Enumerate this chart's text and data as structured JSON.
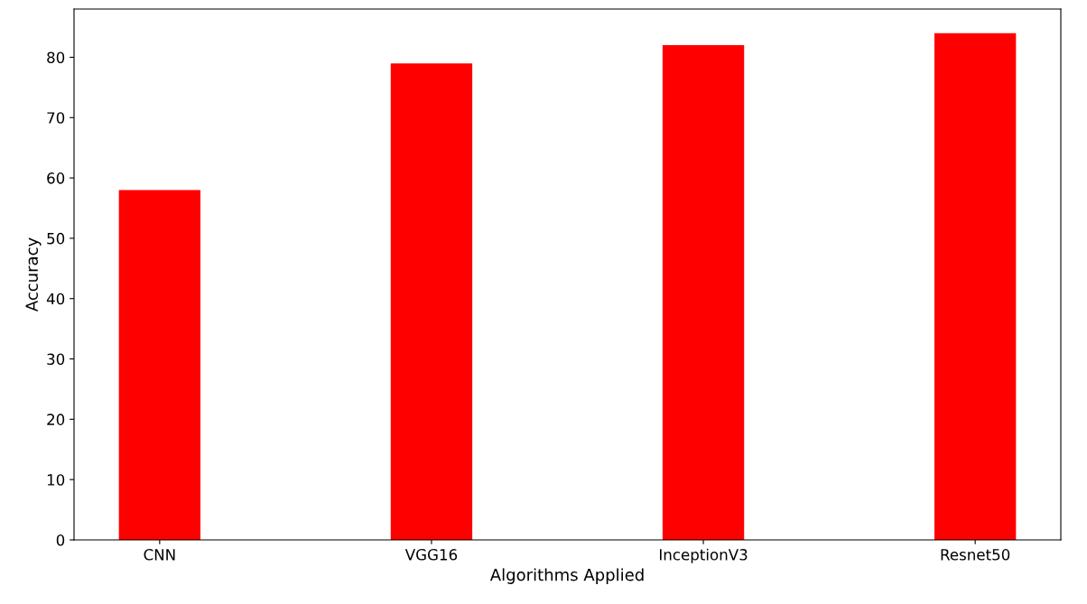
{
  "chart_data": {
    "type": "bar",
    "xlabel": "Algorithms Applied",
    "ylabel": "Accuracy",
    "categories": [
      "CNN",
      "VGG16",
      "InceptionV3",
      "Resnet50"
    ],
    "values": [
      58,
      79,
      82,
      84
    ],
    "color": "#ff0000",
    "ylim": [
      0,
      88
    ],
    "yticks": [
      0,
      10,
      20,
      30,
      40,
      50,
      60,
      70,
      80
    ],
    "grid": false
  }
}
